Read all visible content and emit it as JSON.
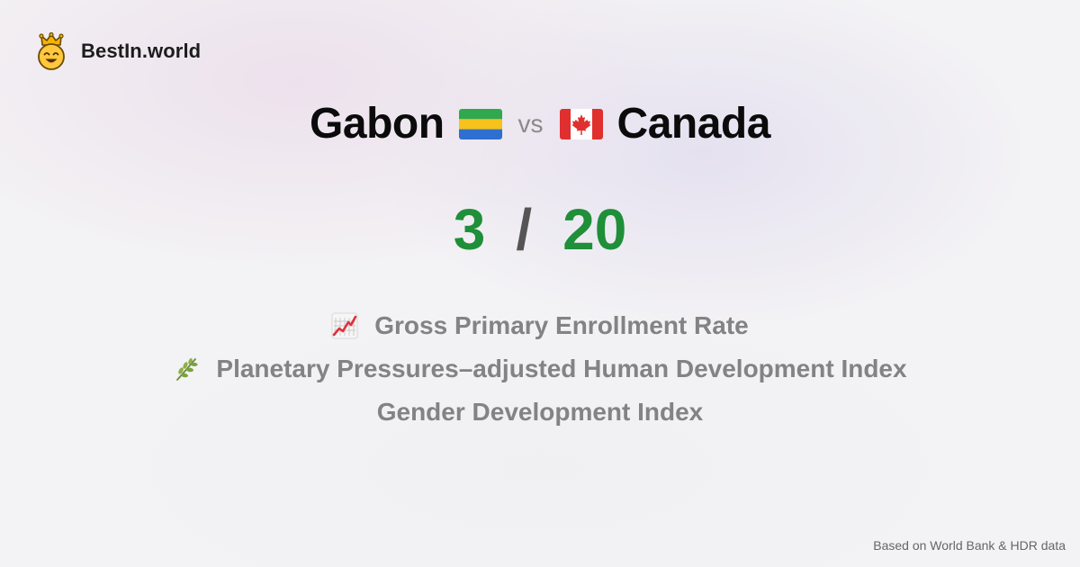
{
  "brand": {
    "name": "BestIn.world",
    "icon": "crowned-smiley-icon"
  },
  "comparison": {
    "left": {
      "name": "Gabon",
      "flag_icon": "gabon-flag-icon"
    },
    "vs_label": "vs",
    "right": {
      "name": "Canada",
      "flag_icon": "canada-flag-icon"
    }
  },
  "score": {
    "left": "3",
    "separator": "/",
    "right": "20",
    "color": "#1f8f39"
  },
  "metrics": [
    {
      "label": "Gross Primary Enrollment Rate",
      "icon": "chart-increasing-icon"
    },
    {
      "label": "Planetary Pressures–adjusted Human Development Index",
      "icon": "herb-icon"
    },
    {
      "label": "Gender Development Index",
      "icon": ""
    }
  ],
  "footer": {
    "source_note": "Based on World Bank & HDR data"
  }
}
